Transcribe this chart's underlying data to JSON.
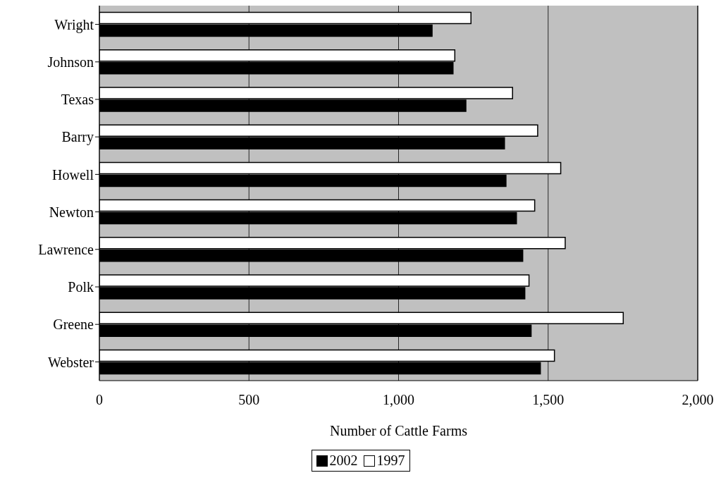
{
  "chart_data": {
    "type": "bar",
    "orientation": "horizontal",
    "xlabel": "Number of Cattle Farms",
    "categories": [
      "Wright",
      "Johnson",
      "Texas",
      "Barry",
      "Howell",
      "Newton",
      "Lawrence",
      "Polk",
      "Greene",
      "Webster"
    ],
    "series": [
      {
        "name": "1997",
        "color": "#ffffff",
        "values": [
          1242,
          1188,
          1381,
          1465,
          1542,
          1455,
          1557,
          1436,
          1751,
          1521
        ]
      },
      {
        "name": "2002",
        "color": "#000000",
        "values": [
          1112,
          1182,
          1225,
          1354,
          1359,
          1394,
          1415,
          1422,
          1443,
          1474
        ]
      }
    ],
    "xlim": [
      0,
      2000
    ],
    "xticks": [
      0,
      {
        "value": 500,
        "label": "500"
      },
      {
        "value": 1000,
        "label": "1,000"
      },
      {
        "value": 1500,
        "label": "1,500"
      },
      {
        "value": 2000,
        "label": "2,000"
      }
    ],
    "grid": "x",
    "legend": "bottom"
  }
}
